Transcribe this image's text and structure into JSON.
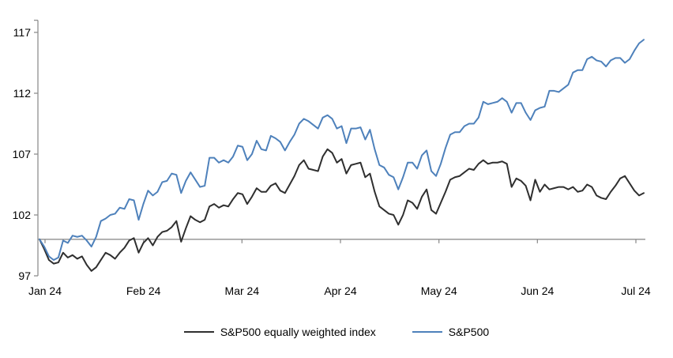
{
  "chart_data": {
    "type": "line",
    "title": "",
    "subtitle": "",
    "x_unit": "daily index values, January 2024 through early July 2024, indexed to 100 at start of period",
    "x_tick_labels": [
      "Jan 24",
      "Feb 24",
      "Mar 24",
      "Apr 24",
      "May 24",
      "Jun 24",
      "Jul 24"
    ],
    "ylim": [
      97,
      118
    ],
    "y_ticks": [
      97,
      102,
      107,
      112,
      117
    ],
    "baseline_value": 100,
    "grid": "off",
    "legend_position": "bottom-center",
    "axis_color": "#8f8f8f",
    "text_color": "#000000",
    "series": [
      {
        "name": "S&P500 equally weighted index",
        "color": "#2f2f2f",
        "values": [
          100.0,
          99.2,
          98.3,
          98.0,
          98.1,
          98.9,
          98.5,
          98.7,
          98.4,
          98.6,
          97.9,
          97.4,
          97.7,
          98.3,
          98.9,
          98.7,
          98.4,
          98.9,
          99.3,
          99.9,
          100.1,
          98.9,
          99.7,
          100.1,
          99.5,
          100.2,
          100.6,
          100.7,
          101.0,
          101.5,
          99.8,
          100.9,
          101.9,
          101.6,
          101.4,
          101.6,
          102.7,
          102.9,
          102.6,
          102.8,
          102.7,
          103.3,
          103.8,
          103.7,
          102.9,
          103.5,
          104.2,
          103.9,
          103.9,
          104.4,
          104.6,
          104.0,
          103.8,
          104.5,
          105.2,
          106.1,
          106.5,
          105.8,
          105.7,
          105.6,
          106.8,
          107.4,
          107.1,
          106.3,
          106.6,
          105.4,
          106.1,
          106.2,
          106.3,
          105.1,
          105.4,
          103.9,
          102.7,
          102.4,
          102.1,
          102.0,
          101.2,
          102.0,
          103.2,
          103.0,
          102.5,
          103.5,
          104.1,
          102.4,
          102.1,
          103.0,
          103.9,
          104.9,
          105.1,
          105.2,
          105.5,
          105.8,
          105.7,
          106.2,
          106.5,
          106.2,
          106.3,
          106.3,
          106.4,
          106.2,
          104.3,
          105.0,
          104.8,
          104.4,
          103.2,
          104.9,
          103.9,
          104.5,
          104.1,
          104.2,
          104.3,
          104.3,
          104.1,
          104.3,
          103.9,
          104.0,
          104.5,
          104.3,
          103.6,
          103.4,
          103.3,
          103.9,
          104.4,
          105.0,
          105.2,
          104.6,
          104.0,
          103.6,
          103.8
        ]
      },
      {
        "name": "S&P500",
        "color": "#4e81bb",
        "values": [
          100.0,
          99.4,
          98.6,
          98.3,
          98.5,
          99.9,
          99.7,
          100.3,
          100.2,
          100.3,
          99.9,
          99.4,
          100.2,
          101.5,
          101.7,
          102.0,
          102.1,
          102.6,
          102.5,
          103.3,
          103.2,
          101.6,
          102.9,
          104.0,
          103.6,
          103.9,
          104.7,
          104.8,
          105.4,
          105.3,
          103.8,
          104.8,
          105.5,
          104.9,
          104.3,
          104.4,
          106.7,
          106.7,
          106.3,
          106.5,
          106.3,
          106.8,
          107.7,
          107.6,
          106.5,
          107.0,
          108.1,
          107.4,
          107.3,
          108.5,
          108.3,
          108.0,
          107.3,
          108.0,
          108.6,
          109.5,
          109.9,
          109.7,
          109.4,
          109.1,
          110.0,
          110.2,
          109.9,
          109.1,
          109.3,
          107.9,
          109.1,
          109.1,
          109.2,
          108.2,
          109.0,
          107.4,
          106.1,
          105.9,
          105.3,
          105.1,
          104.1,
          105.1,
          106.3,
          106.3,
          105.8,
          106.9,
          107.3,
          105.6,
          105.2,
          106.2,
          107.5,
          108.6,
          108.8,
          108.8,
          109.3,
          109.5,
          109.5,
          110.0,
          111.3,
          111.1,
          111.2,
          111.3,
          111.6,
          111.3,
          110.4,
          111.2,
          111.2,
          110.4,
          109.8,
          110.6,
          110.8,
          110.9,
          112.2,
          112.2,
          112.1,
          112.4,
          112.7,
          113.7,
          113.9,
          113.9,
          114.8,
          115.0,
          114.7,
          114.6,
          114.2,
          114.7,
          114.9,
          114.9,
          114.5,
          114.8,
          115.5,
          116.1,
          116.4
        ]
      }
    ]
  }
}
